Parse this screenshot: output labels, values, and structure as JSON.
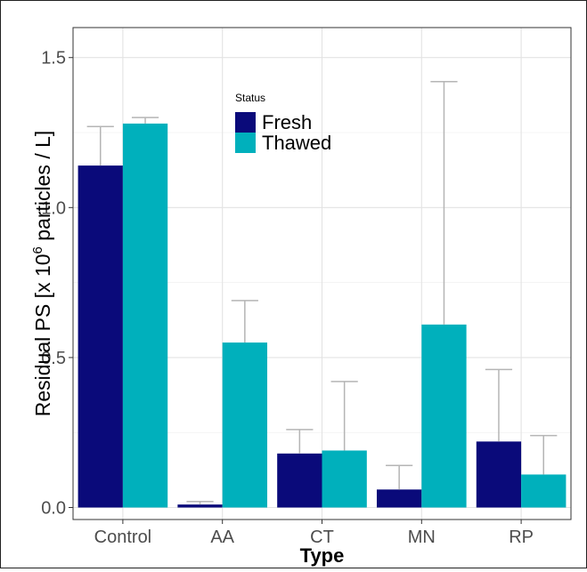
{
  "chart_data": {
    "type": "bar",
    "title": "",
    "xlabel": "Type",
    "ylabel": {
      "prefix": "Residual PS [x 10",
      "exponent": "6",
      "suffix": " particles / L]"
    },
    "categories": [
      "Control",
      "AA",
      "CT",
      "MN",
      "RP"
    ],
    "ylim": [
      -0.04,
      1.6
    ],
    "yticks": [
      "0.0",
      "0.5",
      "1.0",
      "1.5"
    ],
    "ytick_values": [
      0.0,
      0.5,
      1.0,
      1.5
    ],
    "grid": true,
    "legend_title": "Status",
    "legend_position": "top-left inside",
    "series": [
      {
        "name": "Fresh",
        "color": "#0a0a7a",
        "values": [
          1.14,
          0.01,
          0.18,
          0.06,
          0.22
        ],
        "error_upper": [
          1.27,
          0.02,
          0.26,
          0.14,
          0.46
        ]
      },
      {
        "name": "Thawed",
        "color": "#00b0bc",
        "values": [
          1.28,
          0.55,
          0.19,
          0.61,
          0.11
        ],
        "error_upper": [
          1.3,
          0.69,
          0.42,
          1.42,
          0.24
        ]
      }
    ]
  }
}
